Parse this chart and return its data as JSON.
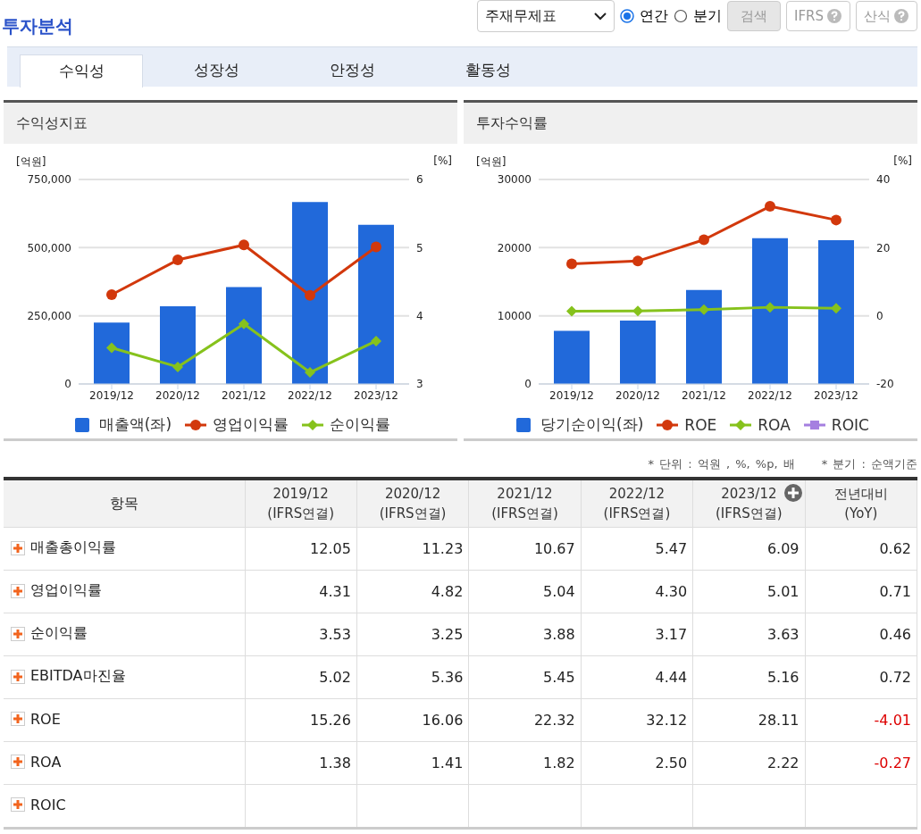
{
  "chart_data": [
    {
      "type": "other",
      "title": "투자분석",
      "annotations": [
        "주재무제표",
        "연간",
        "분기",
        "검색",
        "IFRS",
        "산식",
        "수익성",
        "성장성",
        "안정성",
        "활동성"
      ]
    },
    {
      "type": "bar",
      "title": "수익성지표",
      "categories": [
        "2019/12",
        "2020/12",
        "2021/12",
        "2022/12",
        "2023/12"
      ],
      "ylabel": "[억원]",
      "y2label": "[%]",
      "series": [
        {
          "name": "매출액(좌)",
          "type": "bar",
          "color": "#2169da",
          "values": [
            225000,
            285000,
            355000,
            667000,
            584000
          ]
        },
        {
          "name": "영업이익률",
          "type": "line",
          "axis": "y2",
          "marker": "circle",
          "color": "#d2380c",
          "values": [
            4.31,
            4.82,
            5.04,
            4.3,
            5.01
          ]
        },
        {
          "name": "순이익률",
          "type": "line",
          "axis": "y2",
          "marker": "diamond",
          "color": "#86c21c",
          "values": [
            3.53,
            3.25,
            3.88,
            3.17,
            3.63
          ]
        }
      ],
      "ylim": [
        0,
        750000
      ],
      "yticks": [
        0,
        {
          "value": 250000,
          "label": "250,000"
        },
        {
          "value": 500000,
          "label": "500,000"
        },
        {
          "value": 750000,
          "label": "750,000"
        }
      ],
      "y2lim": [
        3,
        6
      ],
      "y2ticks": [
        3,
        4,
        5,
        6
      ],
      "grid": "y",
      "legend": "bottom"
    },
    {
      "type": "bar",
      "title": "투자수익률",
      "categories": [
        "2019/12",
        "2020/12",
        "2021/12",
        "2022/12",
        "2023/12"
      ],
      "ylabel": "[억원]",
      "y2label": "[%]",
      "series": [
        {
          "name": "당기순이익(좌)",
          "type": "bar",
          "color": "#2169da",
          "values": [
            7800,
            9300,
            13800,
            21400,
            21100
          ]
        },
        {
          "name": "ROE",
          "type": "line",
          "axis": "y2",
          "marker": "circle",
          "color": "#d2380c",
          "values": [
            15.26,
            16.06,
            22.32,
            32.12,
            28.11
          ]
        },
        {
          "name": "ROA",
          "type": "line",
          "axis": "y2",
          "marker": "diamond",
          "color": "#86c21c",
          "values": [
            1.38,
            1.41,
            1.82,
            2.5,
            2.22
          ]
        },
        {
          "name": "ROIC",
          "type": "line",
          "axis": "y2",
          "marker": "square",
          "color": "#a57fe0",
          "values": [
            null,
            null,
            null,
            null,
            null
          ]
        }
      ],
      "ylim": [
        0,
        30000
      ],
      "yticks": [
        0,
        10000,
        20000,
        30000
      ],
      "y2lim": [
        -20,
        40
      ],
      "y2ticks": [
        -20,
        0,
        20,
        40
      ],
      "grid": "y",
      "legend": "bottom"
    },
    {
      "type": "other",
      "xlabel": "항목",
      "categories": [
        "2019/12 (IFRS연결)",
        "2020/12 (IFRS연결)",
        "2021/12 (IFRS연결)",
        "2022/12 (IFRS연결)",
        "2023/12 (IFRS연결)",
        "전년대비 (YoY)"
      ],
      "data_labels": true,
      "annotations": [
        "* 단위 : 억원 , %, %p, 배",
        "* 분기 : 순액기준"
      ],
      "series": [
        {
          "name": "매출총이익률",
          "values": [
            12.05,
            11.23,
            10.67,
            5.47,
            6.09,
            0.62
          ],
          "value_labels": [
            "12.05",
            "11.23",
            "10.67",
            "5.47",
            "6.09",
            "0.62"
          ]
        },
        {
          "name": "영업이익률",
          "values": [
            4.31,
            4.82,
            5.04,
            4.3,
            5.01,
            0.71
          ],
          "value_labels": [
            "4.31",
            "4.82",
            "5.04",
            "4.30",
            "5.01",
            "0.71"
          ]
        },
        {
          "name": "순이익률",
          "values": [
            3.53,
            3.25,
            3.88,
            3.17,
            3.63,
            0.46
          ],
          "value_labels": [
            "3.53",
            "3.25",
            "3.88",
            "3.17",
            "3.63",
            "0.46"
          ]
        },
        {
          "name": "EBITDA마진율",
          "values": [
            5.02,
            5.36,
            5.45,
            4.44,
            5.16,
            0.72
          ],
          "value_labels": [
            "5.02",
            "5.36",
            "5.45",
            "4.44",
            "5.16",
            "0.72"
          ]
        },
        {
          "name": "ROE",
          "values": [
            15.26,
            16.06,
            22.32,
            32.12,
            28.11,
            -4.01
          ],
          "value_labels": [
            "15.26",
            "16.06",
            "22.32",
            "32.12",
            "28.11",
            "-4.01"
          ]
        },
        {
          "name": "ROA",
          "values": [
            1.38,
            1.41,
            1.82,
            2.5,
            2.22,
            -0.27
          ],
          "value_labels": [
            "1.38",
            "1.41",
            "1.82",
            "2.50",
            "2.22",
            "-0.27"
          ]
        },
        {
          "name": "ROIC",
          "values": [
            null,
            null,
            null,
            null,
            null,
            null
          ],
          "value_labels": [
            null,
            null,
            null,
            null,
            null,
            null
          ]
        }
      ]
    }
  ]
}
